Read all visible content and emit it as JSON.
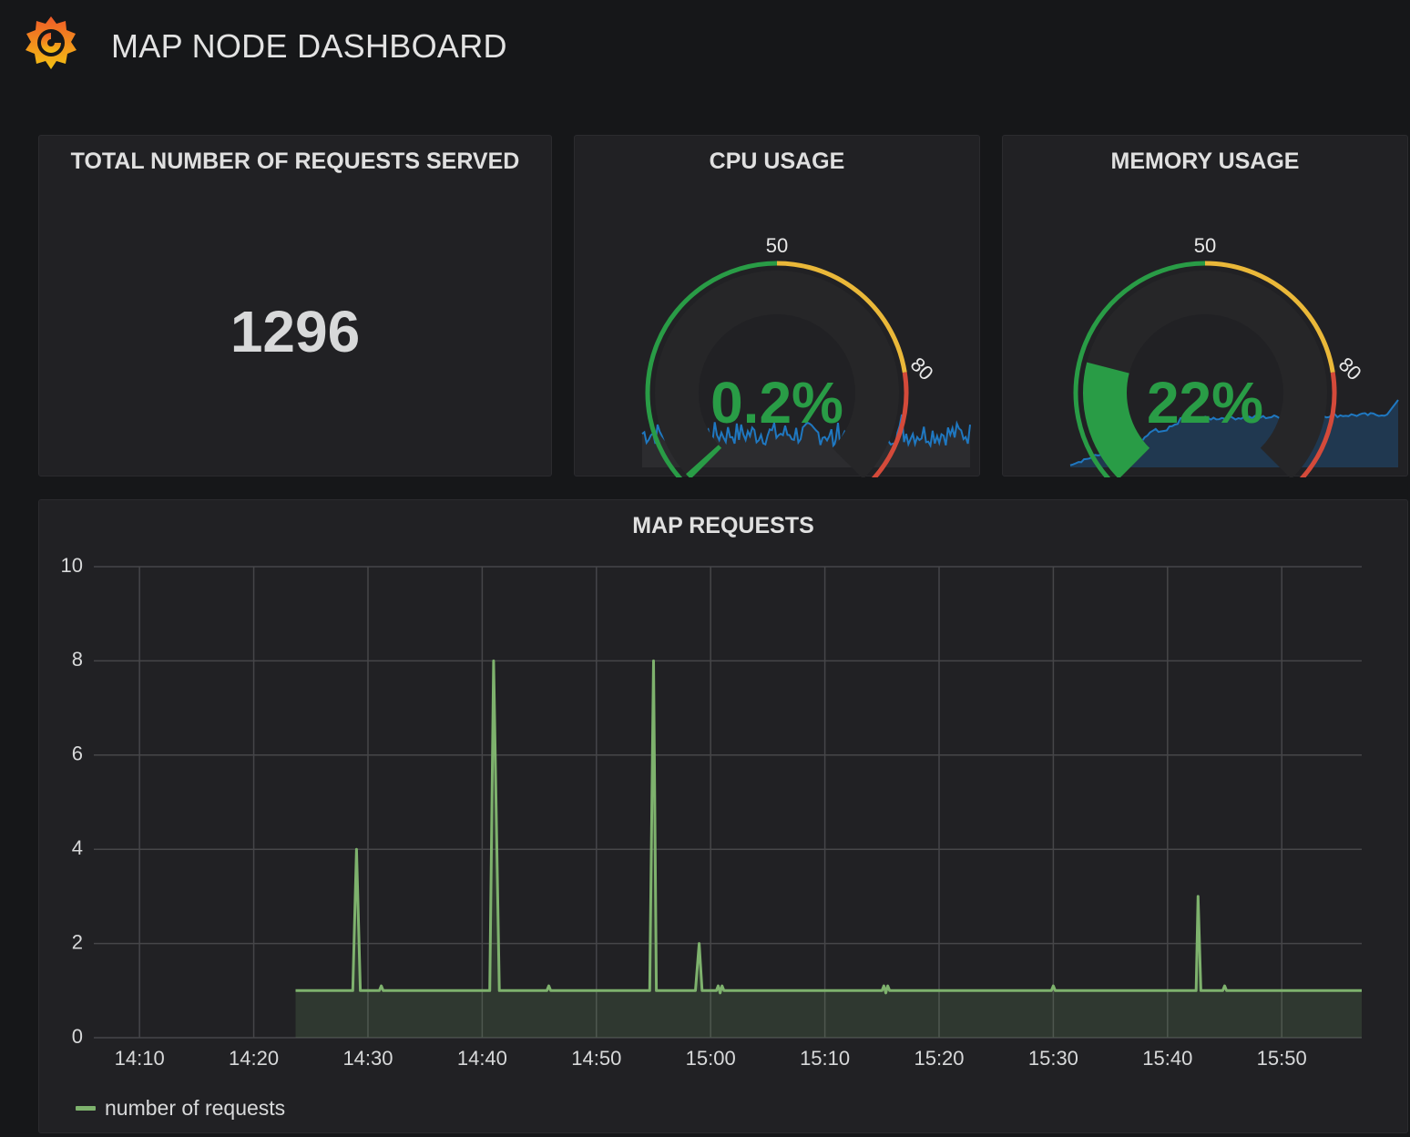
{
  "dashboard": {
    "title": "MAP NODE DASHBOARD",
    "logo_icon": "grafana-logo-icon"
  },
  "panels": {
    "total_requests": {
      "title": "TOTAL NUMBER OF REQUESTS SERVED",
      "value": "1296"
    },
    "cpu": {
      "title": "CPU USAGE",
      "value": 0.2,
      "value_text": "0.2%",
      "gauge_min": 0,
      "gauge_max": 100,
      "ticks": [
        "0",
        "50",
        "80",
        "100"
      ],
      "thresholds": [
        50,
        80
      ],
      "value_color": "#299c46"
    },
    "memory": {
      "title": "MEMORY USAGE",
      "value": 22,
      "value_text": "22%",
      "gauge_min": 0,
      "gauge_max": 100,
      "ticks": [
        "0",
        "50",
        "80",
        "100"
      ],
      "thresholds": [
        50,
        80
      ],
      "value_color": "#299c46"
    },
    "map_requests": {
      "title": "MAP REQUESTS",
      "legend": "number of requests"
    }
  },
  "colors": {
    "ok": "#299c46",
    "warn": "#eab839",
    "critical": "#d44a3a",
    "sparkline": "#1f78c1",
    "series": "#7eb26d"
  },
  "chart_data": {
    "type": "line",
    "title": "MAP REQUESTS",
    "xlabel": "",
    "ylabel": "",
    "ylim": [
      0,
      10
    ],
    "y_ticks": [
      "0",
      "2",
      "4",
      "6",
      "8",
      "10"
    ],
    "x_ticks": [
      "14:10",
      "14:20",
      "14:30",
      "14:40",
      "14:50",
      "15:00",
      "15:10",
      "15:20",
      "15:30",
      "15:40",
      "15:50"
    ],
    "x_range": [
      "14:06",
      "15:57"
    ],
    "grid": true,
    "fill": true,
    "legend_position": "bottom-left",
    "series": [
      {
        "name": "number of requests",
        "color": "#7eb26d",
        "points": [
          [
            "14:23:40",
            1
          ],
          [
            "14:28:40",
            1
          ],
          [
            "14:29:00",
            4
          ],
          [
            "14:29:20",
            1
          ],
          [
            "14:31:00",
            1
          ],
          [
            "14:31:10",
            1.1
          ],
          [
            "14:31:20",
            1
          ],
          [
            "14:40:40",
            1
          ],
          [
            "14:41:00",
            8
          ],
          [
            "14:41:30",
            1
          ],
          [
            "14:45:40",
            1
          ],
          [
            "14:45:50",
            1.1
          ],
          [
            "14:46:00",
            1
          ],
          [
            "14:54:40",
            1
          ],
          [
            "14:55:00",
            8
          ],
          [
            "14:55:15",
            1
          ],
          [
            "14:58:40",
            1
          ],
          [
            "14:59:00",
            2
          ],
          [
            "14:59:15",
            1
          ],
          [
            "15:00:30",
            1
          ],
          [
            "15:00:40",
            1.1
          ],
          [
            "15:00:50",
            0.95
          ],
          [
            "15:01:00",
            1.1
          ],
          [
            "15:01:10",
            1
          ],
          [
            "15:15:00",
            1
          ],
          [
            "15:15:10",
            1.1
          ],
          [
            "15:15:20",
            0.95
          ],
          [
            "15:15:30",
            1.1
          ],
          [
            "15:15:40",
            1
          ],
          [
            "15:29:50",
            1
          ],
          [
            "15:30:00",
            1.1
          ],
          [
            "15:30:10",
            1
          ],
          [
            "15:42:30",
            1
          ],
          [
            "15:42:40",
            3
          ],
          [
            "15:42:55",
            1
          ],
          [
            "15:44:50",
            1
          ],
          [
            "15:45:00",
            1.1
          ],
          [
            "15:45:10",
            1
          ],
          [
            "15:57:00",
            1
          ]
        ]
      }
    ]
  }
}
